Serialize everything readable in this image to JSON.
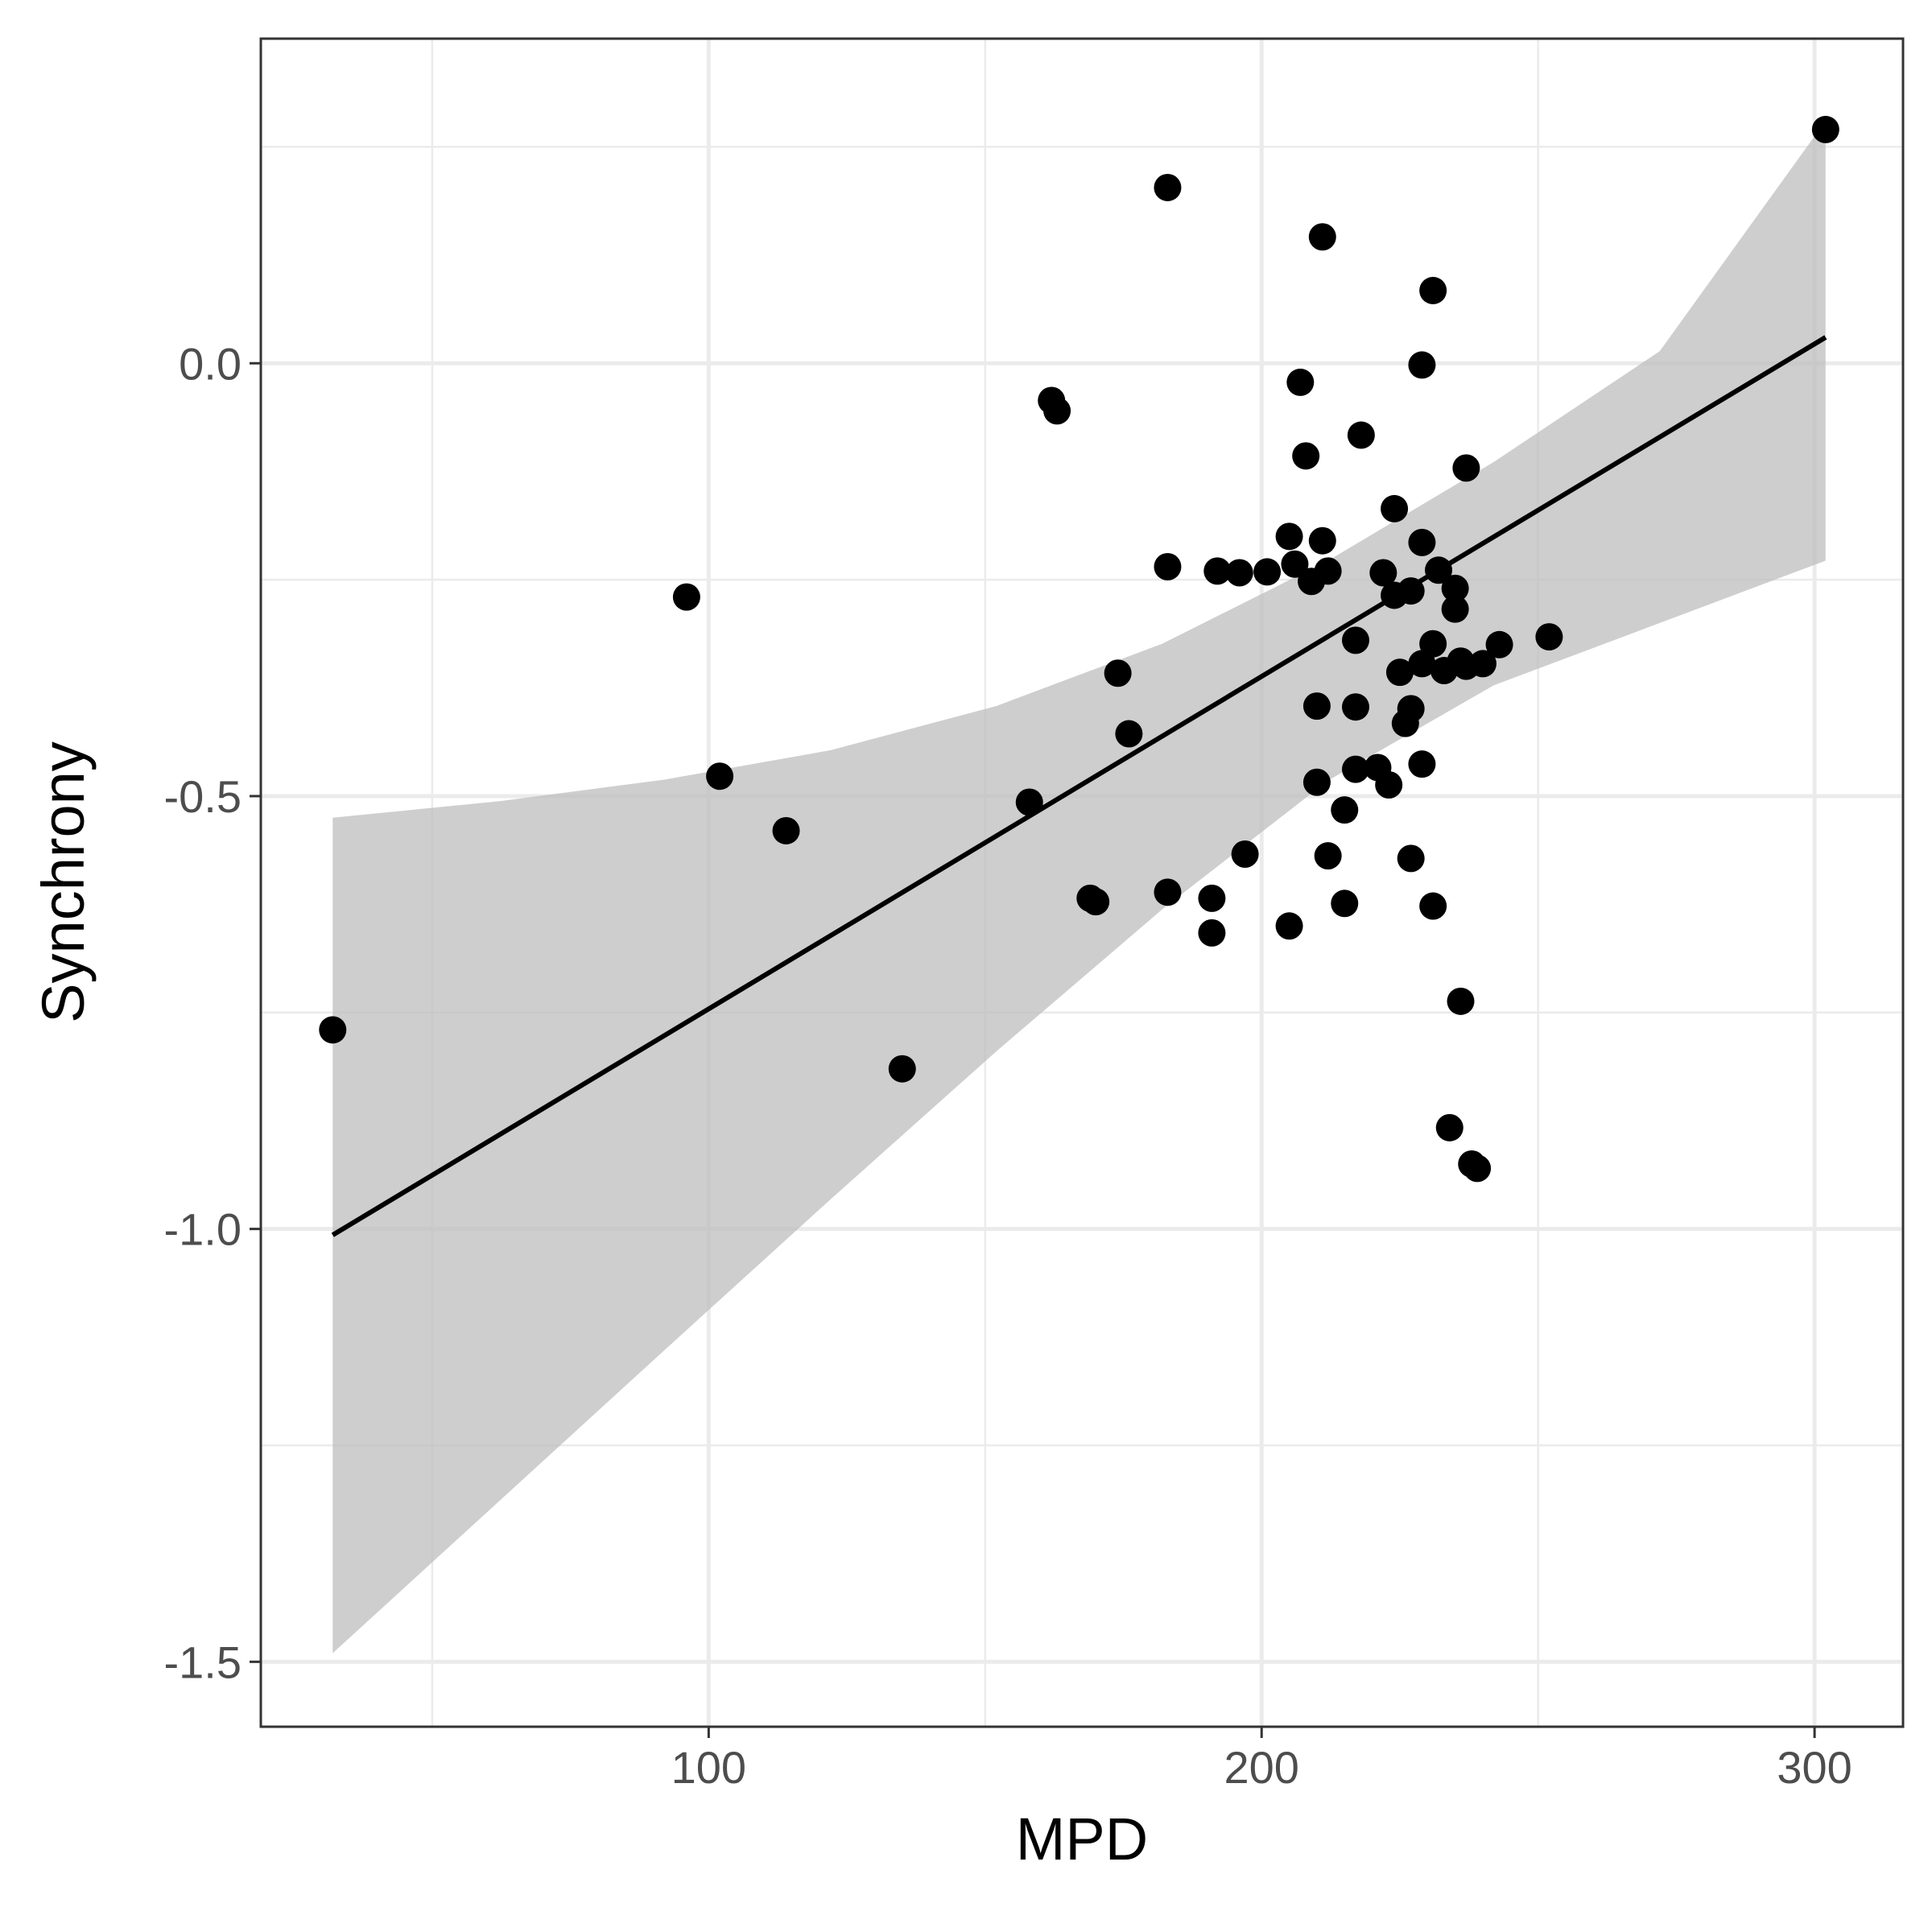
{
  "chart_data": {
    "type": "scatter",
    "title": "",
    "xlabel": "MPD",
    "ylabel": "Synchrony",
    "xlim": [
      19,
      316
    ],
    "ylim": [
      -1.575,
      0.375
    ],
    "x_ticks": [
      100,
      200,
      300
    ],
    "x_tick_labels": [
      "100",
      "200",
      "300"
    ],
    "x_minor_ticks": [
      50,
      150,
      250
    ],
    "y_ticks": [
      -1.5,
      -1.0,
      -0.5,
      0.0
    ],
    "y_tick_labels": [
      "-1.5",
      "-1.0",
      "-0.5",
      "0.0"
    ],
    "y_minor_ticks": [
      -1.25,
      -0.75,
      -0.25,
      0.25
    ],
    "grid": true,
    "legend": "none",
    "colors": {
      "points": "#000000",
      "line": "#000000",
      "band": "#bdbdbd",
      "grid": "#ebebeb",
      "border": "#333333"
    },
    "regression": {
      "x": [
        32,
        302
      ],
      "y": [
        -1.007,
        0.03
      ]
    },
    "confidence_band": {
      "x": [
        32,
        62,
        92,
        122,
        152,
        182,
        212,
        242,
        272,
        302
      ],
      "upper": [
        -0.525,
        -0.506,
        -0.481,
        -0.447,
        -0.396,
        -0.324,
        -0.228,
        -0.114,
        0.014,
        0.28
      ],
      "lower": [
        -1.49,
        -1.315,
        -1.14,
        -0.966,
        -0.795,
        -0.631,
        -0.482,
        -0.372,
        -0.3,
        -0.228
      ]
    },
    "points": [
      {
        "x": 32,
        "y": -0.77
      },
      {
        "x": 96,
        "y": -0.27
      },
      {
        "x": 102,
        "y": -0.477
      },
      {
        "x": 114,
        "y": -0.54
      },
      {
        "x": 135,
        "y": -0.815
      },
      {
        "x": 158,
        "y": -0.507
      },
      {
        "x": 162,
        "y": -0.043
      },
      {
        "x": 163,
        "y": -0.055
      },
      {
        "x": 169,
        "y": -0.618
      },
      {
        "x": 170,
        "y": -0.622
      },
      {
        "x": 174,
        "y": -0.358
      },
      {
        "x": 176,
        "y": -0.428
      },
      {
        "x": 183,
        "y": 0.203
      },
      {
        "x": 183,
        "y": -0.235
      },
      {
        "x": 183,
        "y": -0.611
      },
      {
        "x": 191,
        "y": -0.658
      },
      {
        "x": 191,
        "y": -0.618
      },
      {
        "x": 192,
        "y": -0.24
      },
      {
        "x": 196,
        "y": -0.242
      },
      {
        "x": 197,
        "y": -0.567
      },
      {
        "x": 201,
        "y": -0.241
      },
      {
        "x": 205,
        "y": -0.2
      },
      {
        "x": 205,
        "y": -0.65
      },
      {
        "x": 206,
        "y": -0.232
      },
      {
        "x": 207,
        "y": -0.022
      },
      {
        "x": 208,
        "y": -0.107
      },
      {
        "x": 209,
        "y": -0.252
      },
      {
        "x": 210,
        "y": -0.484
      },
      {
        "x": 210,
        "y": -0.396
      },
      {
        "x": 211,
        "y": -0.205
      },
      {
        "x": 211,
        "y": 0.146
      },
      {
        "x": 212,
        "y": -0.569
      },
      {
        "x": 212,
        "y": -0.24
      },
      {
        "x": 215,
        "y": -0.624
      },
      {
        "x": 215,
        "y": -0.516
      },
      {
        "x": 217,
        "y": -0.469
      },
      {
        "x": 217,
        "y": -0.397
      },
      {
        "x": 217,
        "y": -0.32
      },
      {
        "x": 218,
        "y": -0.083
      },
      {
        "x": 221,
        "y": -0.467
      },
      {
        "x": 222,
        "y": -0.242
      },
      {
        "x": 223,
        "y": -0.487
      },
      {
        "x": 224,
        "y": -0.168
      },
      {
        "x": 224,
        "y": -0.268
      },
      {
        "x": 225,
        "y": -0.357
      },
      {
        "x": 226,
        "y": -0.416
      },
      {
        "x": 227,
        "y": -0.263
      },
      {
        "x": 227,
        "y": -0.572
      },
      {
        "x": 227,
        "y": -0.399
      },
      {
        "x": 229,
        "y": -0.463
      },
      {
        "x": 229,
        "y": -0.002
      },
      {
        "x": 229,
        "y": -0.207
      },
      {
        "x": 229,
        "y": -0.347
      },
      {
        "x": 231,
        "y": -0.324
      },
      {
        "x": 231,
        "y": -0.627
      },
      {
        "x": 231,
        "y": 0.084
      },
      {
        "x": 232,
        "y": -0.239
      },
      {
        "x": 233,
        "y": -0.355
      },
      {
        "x": 234,
        "y": -0.883
      },
      {
        "x": 235,
        "y": -0.284
      },
      {
        "x": 235,
        "y": -0.26
      },
      {
        "x": 236,
        "y": -0.737
      },
      {
        "x": 236,
        "y": -0.344
      },
      {
        "x": 237,
        "y": -0.121
      },
      {
        "x": 237,
        "y": -0.35
      },
      {
        "x": 238,
        "y": -0.925
      },
      {
        "x": 239,
        "y": -0.93
      },
      {
        "x": 240,
        "y": -0.347
      },
      {
        "x": 243,
        "y": -0.325
      },
      {
        "x": 252,
        "y": -0.316
      },
      {
        "x": 302,
        "y": 0.27
      }
    ]
  }
}
